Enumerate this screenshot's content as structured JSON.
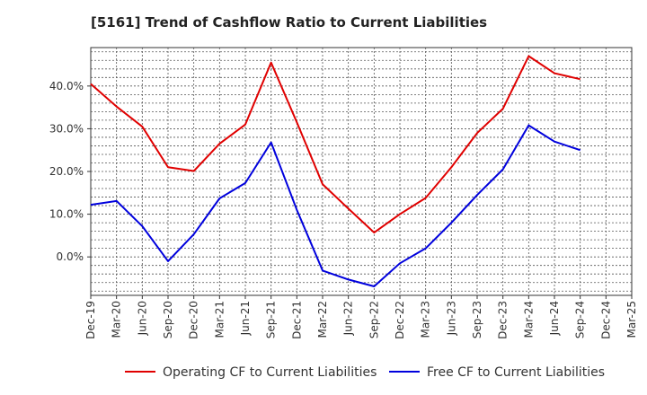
{
  "chart_data": {
    "type": "line",
    "title": "[5161]  Trend of Cashflow Ratio to Current Liabilities",
    "xlabel": "",
    "ylabel": "",
    "x": [
      "Dec-19",
      "Mar-20",
      "Jun-20",
      "Sep-20",
      "Dec-20",
      "Mar-21",
      "Jun-21",
      "Sep-21",
      "Dec-21",
      "Mar-22",
      "Jun-22",
      "Sep-22",
      "Dec-22",
      "Mar-23",
      "Jun-23",
      "Sep-23",
      "Dec-23",
      "Mar-24",
      "Jun-24",
      "Sep-24",
      "Dec-24",
      "Mar-25"
    ],
    "x_ticks": [
      "Dec-19",
      "Mar-20",
      "Jun-20",
      "Sep-20",
      "Dec-20",
      "Mar-21",
      "Jun-21",
      "Sep-21",
      "Dec-21",
      "Mar-22",
      "Jun-22",
      "Sep-22",
      "Dec-22",
      "Mar-23",
      "Jun-23",
      "Sep-23",
      "Dec-23",
      "Mar-24",
      "Jun-24",
      "Sep-24",
      "Dec-24",
      "Mar-25"
    ],
    "y_ticks": [
      0,
      10,
      20,
      30,
      40
    ],
    "y_tick_labels": [
      "0.0%",
      "10.0%",
      "20.0%",
      "30.0%",
      "40.0%"
    ],
    "ylim": [
      -9,
      49
    ],
    "grid": true,
    "legend_position": "bottom",
    "series": [
      {
        "name": "Operating CF to Current Liabilities",
        "color": "#e00000",
        "values": [
          40.5,
          35.2,
          30.5,
          21.0,
          20.1,
          26.5,
          31.0,
          45.5,
          31.5,
          17.0,
          11.3,
          5.7,
          10.0,
          13.8,
          21.0,
          29.0,
          34.7,
          47.0,
          43.0,
          41.6,
          null,
          null
        ]
      },
      {
        "name": "Free CF to Current Liabilities",
        "color": "#0000dd",
        "values": [
          12.2,
          13.1,
          7.2,
          -1.0,
          5.3,
          13.7,
          17.3,
          26.8,
          11.0,
          -3.2,
          -5.3,
          -6.9,
          -1.5,
          2.0,
          8.0,
          14.5,
          20.5,
          30.8,
          27.0,
          25.0,
          null,
          null
        ]
      }
    ]
  }
}
